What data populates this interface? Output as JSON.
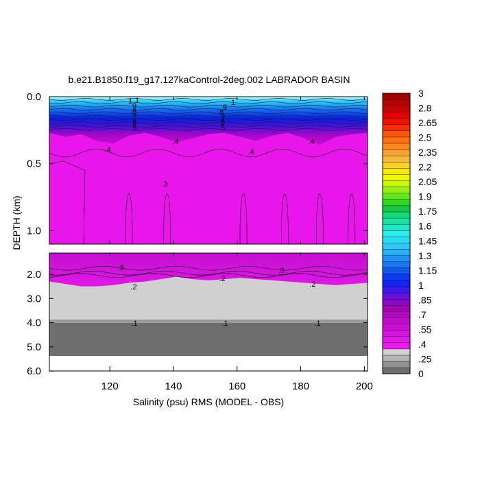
{
  "chart_data": {
    "type": "heatmap",
    "title": "b.e21.B1850.f19_g17.127kaControl-2deg.002 LABRADOR BASIN",
    "xlabel": "Salinity (psu) RMS (MODEL - OBS)",
    "ylabel": "DEPTH (km)",
    "xlim": [
      101,
      201
    ],
    "x_ticks": [
      "120",
      "140",
      "160",
      "180",
      "200"
    ],
    "panels": [
      {
        "name": "upper",
        "ylim": [
          0.0,
          1.1
        ],
        "y_ticks": [
          "0.0",
          "0.5",
          "1.0"
        ]
      },
      {
        "name": "lower",
        "ylim": [
          1.1,
          6.0
        ],
        "y_ticks": [
          "2.0",
          "3.0",
          "4.0",
          "5.0",
          "6.0"
        ]
      }
    ],
    "colorbar": {
      "labels": [
        "0",
        ".25",
        ".4",
        ".55",
        ".7",
        ".85",
        "1",
        "1.15",
        "1.3",
        "1.45",
        "1.6",
        "1.75",
        "1.9",
        "2.05",
        "2.2",
        "2.35",
        "2.5",
        "2.65",
        "2.8",
        "3"
      ],
      "colors": [
        "#6e6e6e",
        "#909090",
        "#b4b4b4",
        "#d2d2d2",
        "#f018f0",
        "#e318ea",
        "#d714e2",
        "#cc10da",
        "#bf0ccf",
        "#b208c2",
        "#a404b4",
        "#8a08c8",
        "#6810dc",
        "#3a18ee",
        "#1424f8",
        "#0a3af2",
        "#1058f0",
        "#1878f2",
        "#2094f4",
        "#28b0f6",
        "#30c8f6",
        "#2adcf2",
        "#28eeee",
        "#20e8c8",
        "#18e0a0",
        "#14d878",
        "#18c840",
        "#30d820",
        "#60e818",
        "#98f010",
        "#c8f808",
        "#f0f800",
        "#f8e810",
        "#f8d028",
        "#f8b840",
        "#f8a030",
        "#f88820",
        "#f87010",
        "#f85808",
        "#f83000",
        "#f01000",
        "#e00000",
        "#c80000",
        "#b40000",
        "#a00000"
      ]
    },
    "contour_labels_upper": [
      "1",
      "1",
      "9",
      "8",
      "7",
      "6",
      "5",
      "1",
      "9",
      "8",
      "7",
      "6",
      "5",
      ".4",
      ".4",
      ".4",
      ".4",
      ".3"
    ],
    "contour_labels_lower": [
      ".3",
      ".3",
      ".2",
      ".2",
      ".2",
      ".1",
      ".1",
      ".1"
    ],
    "surface_profile_upper": [
      0.27,
      0.3,
      0.28,
      0.33,
      0.35,
      0.29,
      0.27,
      0.3,
      0.34,
      0.31,
      0.28,
      0.27,
      0.3,
      0.33,
      0.29,
      0.27,
      0.31,
      0.36,
      0.3,
      0.28,
      0.27
    ],
    "gray_boundary_lower": [
      2.3,
      2.4,
      2.5,
      2.5,
      2.45,
      2.35,
      2.3,
      2.2,
      2.1,
      2.2,
      2.25,
      2.2,
      2.15,
      2.2,
      2.25,
      2.3,
      2.35,
      2.4,
      2.45,
      2.4,
      2.35
    ]
  }
}
